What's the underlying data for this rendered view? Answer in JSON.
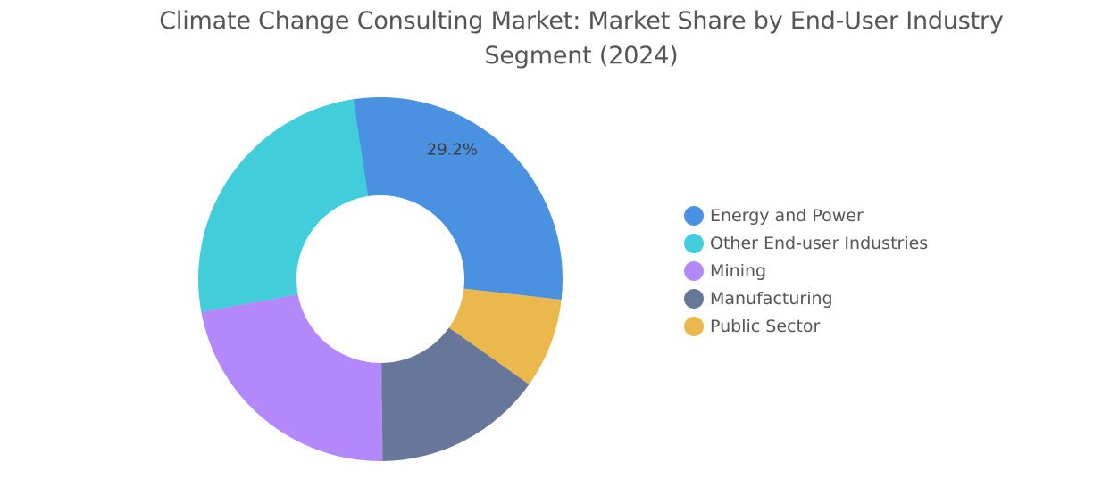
{
  "chart_data": {
    "type": "pie",
    "variant": "donut",
    "title": [
      "Climate Change Consulting Market: Market Share by End-User Industry",
      "Segment (2024)"
    ],
    "unit": "%",
    "categories": [
      "Energy and Power",
      "Public Sector",
      "Manufacturing",
      "Mining",
      "Other End-user Industries"
    ],
    "values": [
      29.2,
      8.0,
      15.0,
      22.3,
      25.5
    ],
    "colors": [
      "#4a91e2",
      "#ebb84d",
      "#667799",
      "#b388fb",
      "#41cdd9"
    ],
    "data_labels": [
      {
        "category": "Energy and Power",
        "text": "29.2%"
      }
    ],
    "legend": {
      "placement": "right",
      "entries": [
        {
          "label": "Energy and Power",
          "color": "#4a91e2"
        },
        {
          "label": "Other End-user Industries",
          "color": "#41cdd9"
        },
        {
          "label": "Mining",
          "color": "#b388fb"
        },
        {
          "label": "Manufacturing",
          "color": "#667799"
        },
        {
          "label": "Public Sector",
          "color": "#ebb84d"
        }
      ]
    }
  }
}
